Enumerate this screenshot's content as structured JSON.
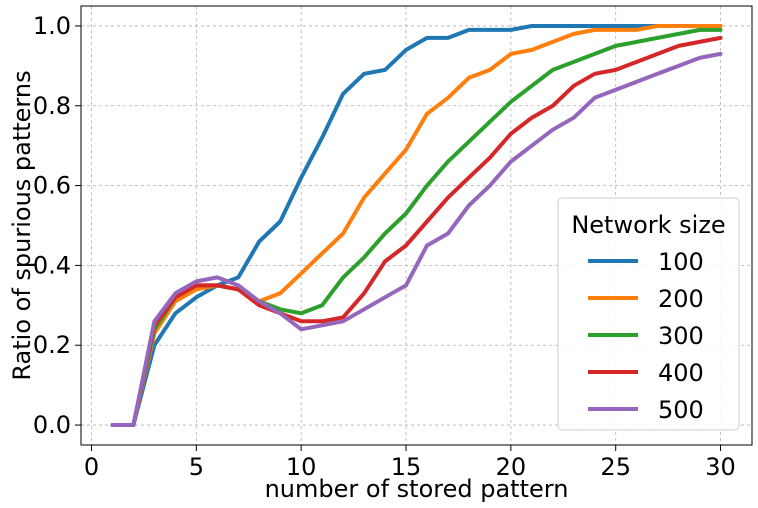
{
  "chart_data": {
    "type": "line",
    "xlabel": "number of stored pattern",
    "ylabel": "Ratio of spurious patterns",
    "xlim": [
      -0.5,
      31.5
    ],
    "ylim": [
      -0.05,
      1.05
    ],
    "xticks": [
      0,
      5,
      10,
      15,
      20,
      25,
      30
    ],
    "yticks": [
      0.0,
      0.2,
      0.4,
      0.6,
      0.8,
      1.0
    ],
    "xtick_labels": [
      "0",
      "5",
      "10",
      "15",
      "20",
      "25",
      "30"
    ],
    "ytick_labels": [
      "0.0",
      "0.2",
      "0.4",
      "0.6",
      "0.8",
      "1.0"
    ],
    "grid": true,
    "legend": {
      "title": "Network size",
      "position": "lower-right"
    },
    "x": [
      1,
      2,
      3,
      4,
      5,
      6,
      7,
      8,
      9,
      10,
      11,
      12,
      13,
      14,
      15,
      16,
      17,
      18,
      19,
      20,
      21,
      22,
      23,
      24,
      25,
      26,
      27,
      28,
      29,
      30
    ],
    "series": [
      {
        "name": "100",
        "color": "#1f77b4",
        "values": [
          0,
          0,
          0.2,
          0.28,
          0.32,
          0.35,
          0.37,
          0.46,
          0.51,
          0.62,
          0.72,
          0.83,
          0.88,
          0.89,
          0.94,
          0.97,
          0.97,
          0.99,
          0.99,
          0.99,
          1.0,
          1.0,
          1.0,
          1.0,
          1.0,
          1.0,
          1.0,
          1.0,
          1.0,
          1.0
        ]
      },
      {
        "name": "200",
        "color": "#ff7f0e",
        "values": [
          0,
          0,
          0.23,
          0.31,
          0.34,
          0.35,
          0.34,
          0.31,
          0.33,
          0.38,
          0.43,
          0.48,
          0.57,
          0.63,
          0.69,
          0.78,
          0.82,
          0.87,
          0.89,
          0.93,
          0.94,
          0.96,
          0.98,
          0.99,
          0.99,
          0.99,
          1.0,
          1.0,
          1.0,
          1.0
        ]
      },
      {
        "name": "300",
        "color": "#2ca02c",
        "values": [
          0,
          0,
          0.24,
          0.32,
          0.35,
          0.35,
          0.34,
          0.31,
          0.29,
          0.28,
          0.3,
          0.37,
          0.42,
          0.48,
          0.53,
          0.6,
          0.66,
          0.71,
          0.76,
          0.81,
          0.85,
          0.89,
          0.91,
          0.93,
          0.95,
          0.96,
          0.97,
          0.98,
          0.99,
          0.99
        ]
      },
      {
        "name": "400",
        "color": "#d62728",
        "values": [
          0,
          0,
          0.25,
          0.32,
          0.35,
          0.35,
          0.34,
          0.3,
          0.28,
          0.26,
          0.26,
          0.27,
          0.33,
          0.41,
          0.45,
          0.51,
          0.57,
          0.62,
          0.67,
          0.73,
          0.77,
          0.8,
          0.85,
          0.88,
          0.89,
          0.91,
          0.93,
          0.95,
          0.96,
          0.97
        ]
      },
      {
        "name": "500",
        "color": "#9467bd",
        "values": [
          0,
          0,
          0.26,
          0.33,
          0.36,
          0.37,
          0.35,
          0.31,
          0.28,
          0.24,
          0.25,
          0.26,
          0.29,
          0.32,
          0.35,
          0.45,
          0.48,
          0.55,
          0.6,
          0.66,
          0.7,
          0.74,
          0.77,
          0.82,
          0.84,
          0.86,
          0.88,
          0.9,
          0.92,
          0.93
        ]
      }
    ]
  }
}
